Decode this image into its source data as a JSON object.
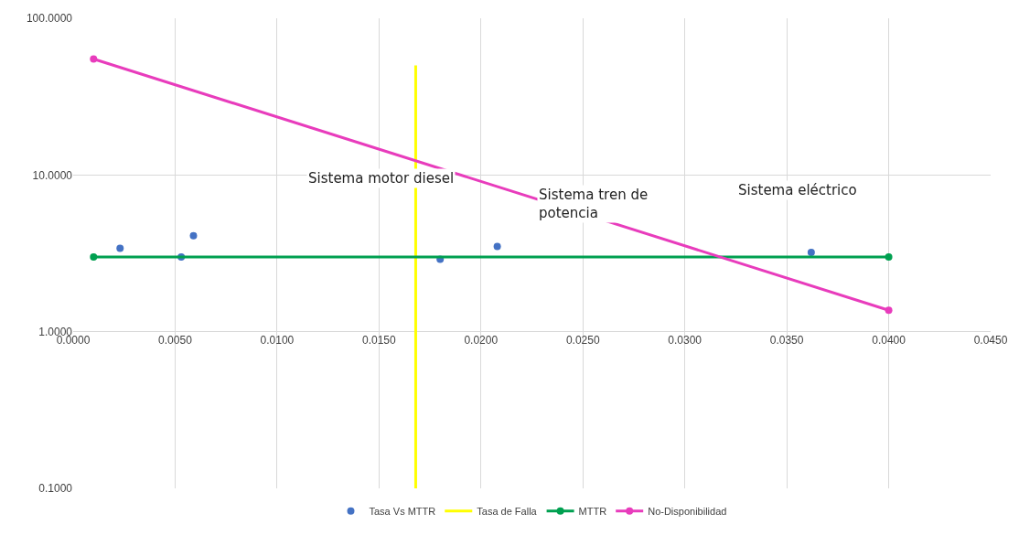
{
  "chart_data": {
    "type": "scatter",
    "log": "y",
    "grid": true,
    "legend": "bottom",
    "xlim": [
      0,
      0.045
    ],
    "ylim": [
      0.1,
      100
    ],
    "xticks": [
      {
        "value": 0,
        "label": "0.0000"
      },
      {
        "value": 0.005,
        "label": "0.0050"
      },
      {
        "value": 0.01,
        "label": "0.0100"
      },
      {
        "value": 0.015,
        "label": "0.0150"
      },
      {
        "value": 0.02,
        "label": "0.0200"
      },
      {
        "value": 0.025,
        "label": "0.0250"
      },
      {
        "value": 0.03,
        "label": "0.0300"
      },
      {
        "value": 0.035,
        "label": "0.0350"
      },
      {
        "value": 0.04,
        "label": "0.0400"
      },
      {
        "value": 0.045,
        "label": "0.0450"
      }
    ],
    "yticks": [
      {
        "value": 0.1,
        "label": "0.1000"
      },
      {
        "value": 1,
        "label": "1.0000"
      },
      {
        "value": 10,
        "label": "10.0000"
      },
      {
        "value": 100,
        "label": "100.0000"
      }
    ],
    "series": [
      {
        "name": "Tasa Vs MTTR",
        "marker": "circle",
        "color": "#4472c4",
        "x": [
          0.0023,
          0.0053,
          0.0059,
          0.018,
          0.0208,
          0.0362
        ],
        "values": [
          3.4,
          3.0,
          4.1,
          2.9,
          3.5,
          3.2
        ]
      },
      {
        "name": "Tasa de Falla",
        "type": "line",
        "marker": "none",
        "color": "#ffff00",
        "x": [
          0.0168,
          0.0168
        ],
        "values": [
          0.1,
          50
        ]
      },
      {
        "name": "MTTR",
        "type": "line",
        "marker": "circle",
        "color": "#00a050",
        "x": [
          0.001,
          0.04
        ],
        "values": [
          3.0,
          3.0
        ]
      },
      {
        "name": "No-Disponibilidad",
        "type": "line",
        "marker": "circle",
        "color": "#e83cbc",
        "x": [
          0.001,
          0.04
        ],
        "values": [
          55,
          1.37
        ]
      }
    ],
    "annotations": [
      "Sistema motor diesel",
      "Sistema tren de\npotencia",
      "Sistema eléctrico"
    ]
  }
}
